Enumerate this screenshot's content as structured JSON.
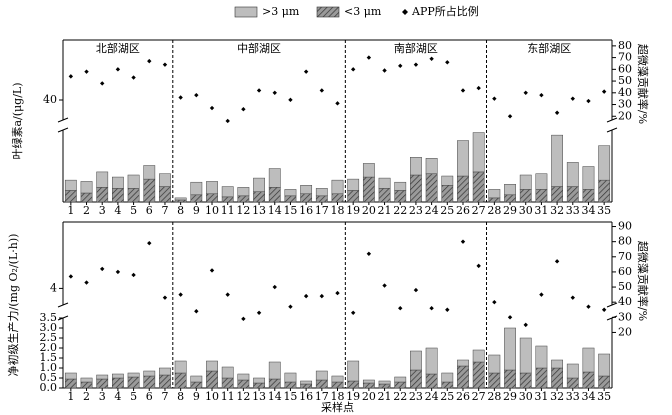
{
  "chart_data": [
    {
      "type": "bar",
      "categories": [
        "1",
        "2",
        "3",
        "4",
        "5",
        "6",
        "7",
        "8",
        "9",
        "10",
        "11",
        "12",
        "13",
        "14",
        "15",
        "16",
        "17",
        "18",
        "19",
        "20",
        "21",
        "22",
        "23",
        "24",
        "25",
        "26",
        "27",
        "28",
        "29",
        "30",
        "31",
        "32",
        "33",
        "34",
        "35"
      ],
      "regions": [
        {
          "name": "北部湖区",
          "start": 1,
          "end": 7
        },
        {
          "name": "中部湖区",
          "start": 8,
          "end": 18
        },
        {
          "name": "南部湖区",
          "start": 19,
          "end": 27
        },
        {
          "name": "东部湖区",
          "start": 28,
          "end": 35
        }
      ],
      "ylabel": "叶绿素a/(μg/L)",
      "y2label": "超微藻贡献率/%",
      "ylim": [
        0,
        52
      ],
      "ybreak": [
        28,
        36
      ],
      "yticks": [
        40
      ],
      "y2lim": [
        10,
        85
      ],
      "y2ticks": [
        20,
        30,
        40,
        50,
        60,
        70,
        80
      ],
      "series": [
        {
          "name": ">3 μm",
          "color": "#bdbdbd",
          "values": [
            4.0,
            4.5,
            6.0,
            4.4,
            5.2,
            5.3,
            5.0,
            0.8,
            4.9,
            4.8,
            4.0,
            3.3,
            5.3,
            7.3,
            2.5,
            3.3,
            2.9,
            5.3,
            4.4,
            5.3,
            4.0,
            3.2,
            6.9,
            6.0,
            3.6,
            13.8,
            15.3,
            3.3,
            4.1,
            5.6,
            6.1,
            20.0,
            9.4,
            8.9,
            13.4
          ]
        },
        {
          "name": "<3 μm",
          "color": "#888888",
          "pattern": "hatch",
          "values": [
            4.5,
            3.5,
            5.7,
            5.3,
            5.3,
            8.9,
            6.0,
            0.8,
            2.8,
            3.2,
            2.0,
            2.4,
            4.0,
            5.7,
            2.4,
            3.2,
            2.4,
            3.2,
            4.5,
            9.7,
            5.3,
            4.5,
            10.5,
            11.0,
            6.5,
            10.1,
            11.7,
            1.6,
            2.8,
            4.9,
            4.9,
            6.0,
            6.0,
            4.9,
            8.5
          ]
        },
        {
          "name": "APP所占比例",
          "type": "scatter",
          "axis": "y2",
          "color": "#000000",
          "values": [
            54,
            58,
            48,
            60,
            53,
            67,
            64,
            36,
            38,
            27,
            16,
            26,
            42,
            40,
            34,
            58,
            42,
            31,
            60,
            70,
            59,
            63,
            64,
            69,
            66,
            42,
            44,
            35,
            20,
            40,
            38,
            23,
            35,
            33,
            41
          ]
        }
      ]
    },
    {
      "type": "bar",
      "categories": [
        "1",
        "2",
        "3",
        "4",
        "5",
        "6",
        "7",
        "8",
        "9",
        "10",
        "11",
        "12",
        "13",
        "14",
        "15",
        "16",
        "17",
        "18",
        "19",
        "20",
        "21",
        "22",
        "23",
        "24",
        "25",
        "26",
        "27",
        "28",
        "29",
        "30",
        "31",
        "32",
        "33",
        "34",
        "35"
      ],
      "xlabel": "采样点",
      "ylabel": "净初级生产力/(mg O₂/(L·h))",
      "y2label": "超微藻贡献率/%",
      "ylim": [
        0,
        4.8
      ],
      "ybreak": [
        3.5,
        3.8
      ],
      "yticks": [
        {
          "value": 0,
          "label": "0.0"
        },
        {
          "value": 0.5,
          "label": "0.5"
        },
        {
          "value": 1,
          "label": "1.0"
        },
        {
          "value": 1.5,
          "label": "1.5"
        },
        {
          "value": 2,
          "label": "2.0"
        },
        {
          "value": 2.5,
          "label": "2.5"
        },
        {
          "value": 3,
          "label": "3.0"
        },
        {
          "value": 3.5,
          "label": "3.5"
        },
        4
      ],
      "y2lim": [
        15,
        93
      ],
      "y2ticks": [
        20,
        30,
        40,
        50,
        60,
        70,
        80,
        90
      ],
      "series": [
        {
          "name": ">3 μm",
          "color": "#bdbdbd",
          "values": [
            0.3,
            0.2,
            0.2,
            0.2,
            0.2,
            0.25,
            0.35,
            0.6,
            0.3,
            0.5,
            0.55,
            0.3,
            0.25,
            0.85,
            0.45,
            0.15,
            0.45,
            0.3,
            1.0,
            0.15,
            0.15,
            0.25,
            0.95,
            1.3,
            0.45,
            0.3,
            0.6,
            0.9,
            2.1,
            1.75,
            1.1,
            0.4,
            0.7,
            1.2,
            1.1
          ]
        },
        {
          "name": "<3 μm",
          "color": "#888888",
          "pattern": "hatch",
          "values": [
            0.45,
            0.3,
            0.45,
            0.5,
            0.55,
            0.6,
            0.65,
            0.75,
            0.3,
            0.85,
            0.5,
            0.4,
            0.25,
            0.45,
            0.3,
            0.2,
            0.4,
            0.3,
            0.35,
            0.25,
            0.2,
            0.3,
            0.9,
            0.7,
            0.3,
            1.1,
            1.3,
            0.75,
            0.9,
            0.75,
            1.0,
            1.0,
            0.5,
            0.8,
            0.6
          ]
        },
        {
          "name": "APP所占比例",
          "type": "scatter",
          "axis": "y2",
          "color": "#000000",
          "values": [
            57,
            53,
            62,
            60,
            58,
            79,
            43,
            45,
            34,
            61,
            45,
            29,
            33,
            50,
            37,
            44,
            44,
            46,
            33,
            72,
            51,
            36,
            48,
            36,
            35,
            80,
            64,
            40,
            30,
            25,
            45,
            67,
            43,
            37,
            35
          ]
        }
      ]
    }
  ]
}
